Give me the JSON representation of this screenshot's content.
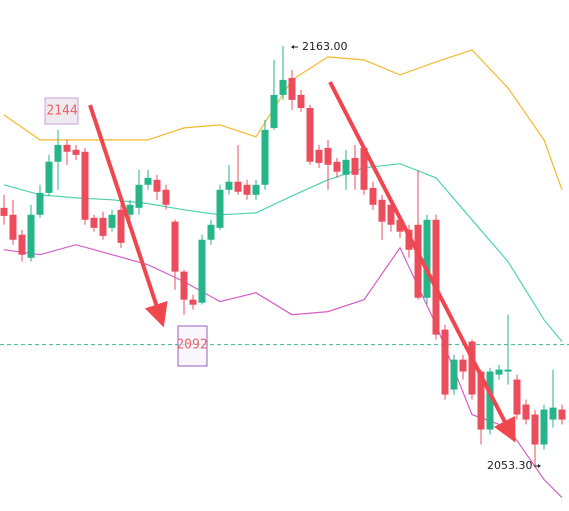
{
  "chart_data": {
    "type": "candlestick",
    "up_color": "#26b589",
    "down_color": "#eb4d5c",
    "ylim": [
      2042,
      2175
    ],
    "open": [
      2120.9,
      2119.1,
      2113.9,
      2107.9,
      2119.1,
      2124.8,
      2132.9,
      2137.3,
      2136,
      2135.5,
      2118.3,
      2118.3,
      2115.7,
      2120.4,
      2119.1,
      2120.9,
      2126.9,
      2128.2,
      2125.6,
      2117.3,
      2104.3,
      2097,
      2096.2,
      2112.6,
      2115.7,
      2125.6,
      2127.7,
      2126.9,
      2124.3,
      2126.9,
      2141.7,
      2150.3,
      2154.7,
      2150.3,
      2146.9,
      2136,
      2136.5,
      2132.9,
      2129.5,
      2133.9,
      2136.5,
      2126.1,
      2123,
      2121.7,
      2117.8,
      2115.2,
      2116.5,
      2097.5,
      2117.8,
      2089.2,
      2073.6,
      2081.4,
      2086.1,
      2078.3,
      2063.2,
      2077.5,
      2078.3,
      2076.2,
      2069.7,
      2067.1,
      2059.3,
      2065.8,
      2068.4
    ],
    "high": [
      2124.3,
      2123,
      2115.2,
      2121.7,
      2126.9,
      2134.7,
      2141.2,
      2138.6,
      2137.3,
      2136.5,
      2119.1,
      2119.9,
      2120.4,
      2121.7,
      2123,
      2130.8,
      2130.8,
      2129.5,
      2126.9,
      2117.8,
      2104.8,
      2098.3,
      2113.9,
      2117.8,
      2126.9,
      2132.1,
      2137.3,
      2128.2,
      2128.2,
      2143.8,
      2159.4,
      2163,
      2156.8,
      2151.6,
      2147.7,
      2137.3,
      2138.6,
      2133.9,
      2136,
      2137.3,
      2137.3,
      2127.7,
      2124.3,
      2123,
      2119.1,
      2116.5,
      2130.8,
      2119.1,
      2119.1,
      2090.5,
      2082.7,
      2082.7,
      2086.6,
      2078.8,
      2079.3,
      2080.1,
      2093.1,
      2077.5,
      2071,
      2068.4,
      2069.7,
      2078.8,
      2069.7
    ],
    "low": [
      2116.5,
      2111.3,
      2106.9,
      2106.9,
      2118.3,
      2124,
      2125.6,
      2132.1,
      2133.4,
      2116.5,
      2114.7,
      2112.6,
      2114.7,
      2110.5,
      2117.8,
      2119.1,
      2125.6,
      2123,
      2120.4,
      2099.6,
      2093.1,
      2094.4,
      2095.7,
      2111.3,
      2115.2,
      2124.3,
      2124.3,
      2123,
      2123,
      2125.6,
      2141.2,
      2149,
      2146.4,
      2145.9,
      2132.1,
      2131.3,
      2125.6,
      2128.7,
      2125.6,
      2125.6,
      2124.3,
      2120.4,
      2112.6,
      2114.7,
      2113.1,
      2107.9,
      2097,
      2095.7,
      2086.6,
      2071,
      2072.3,
      2076.2,
      2071,
      2059.3,
      2061.9,
      2076.2,
      2074.9,
      2065.8,
      2064.5,
      2053.3,
      2058,
      2063.7,
      2064.5
    ],
    "close": [
      2118.8,
      2112.6,
      2108.7,
      2119.1,
      2124.8,
      2132.9,
      2137.3,
      2135.5,
      2134.7,
      2117.8,
      2115.7,
      2113.6,
      2119.1,
      2111.8,
      2121.7,
      2126.9,
      2128.7,
      2125.1,
      2121.7,
      2104.3,
      2097,
      2095.7,
      2112.6,
      2116.5,
      2125.6,
      2127.7,
      2125.1,
      2124.3,
      2126.9,
      2141.2,
      2150.3,
      2154.2,
      2149,
      2146.9,
      2132.9,
      2132.6,
      2132.1,
      2130.3,
      2133.4,
      2129.5,
      2125.6,
      2121.7,
      2117.3,
      2116.5,
      2114.7,
      2110,
      2097.5,
      2117.8,
      2087.9,
      2072.3,
      2081.4,
      2078.3,
      2072.3,
      2063.2,
      2078.3,
      2078.8,
      2078.8,
      2067.1,
      2065.8,
      2059.3,
      2068.4,
      2068.9,
      2065.8
    ],
    "bands": [
      {
        "color": "#f2b92c",
        "x": [
          0,
          4,
          8,
          12,
          16,
          20,
          24,
          28,
          32,
          36,
          40,
          44,
          48,
          52,
          56,
          60,
          62
        ],
        "values": [
          2145.1,
          2138.6,
          2138.6,
          2138.6,
          2138.6,
          2141.7,
          2142.5,
          2139.4,
          2154.2,
          2160.2,
          2159.4,
          2155.5,
          2158.9,
          2162,
          2152.1,
          2138.6,
          2125.6
        ]
      },
      {
        "color": "#4fd3ae",
        "x": [
          0,
          4,
          8,
          12,
          16,
          20,
          24,
          28,
          32,
          36,
          40,
          44,
          48,
          52,
          56,
          60,
          62
        ],
        "values": [
          2126.9,
          2124.3,
          2123.5,
          2123,
          2122,
          2120.4,
          2119.1,
          2119.6,
          2124,
          2128.2,
          2131.3,
          2132.4,
          2128.7,
          2117.8,
          2106.9,
          2091.8,
          2086.1
        ]
      },
      {
        "color": "#d55fc9",
        "x": [
          0,
          4,
          8,
          12,
          16,
          20,
          24,
          28,
          32,
          36,
          40,
          44,
          48,
          52,
          56,
          60,
          62
        ],
        "values": [
          2110,
          2108.7,
          2111.3,
          2108.7,
          2106.1,
          2101.7,
          2096.5,
          2098.8,
          2093.1,
          2093.9,
          2097,
          2110.5,
          2090.5,
          2067.1,
          2063.7,
          2050.2,
          2045.5
        ]
      }
    ],
    "level_line": {
      "value": 2085.3,
      "color": "#3bb58a"
    },
    "high_label": "2163.00",
    "low_label": "2053.30",
    "annotations": [
      {
        "text": "2144"
      },
      {
        "text": "2092"
      }
    ]
  }
}
